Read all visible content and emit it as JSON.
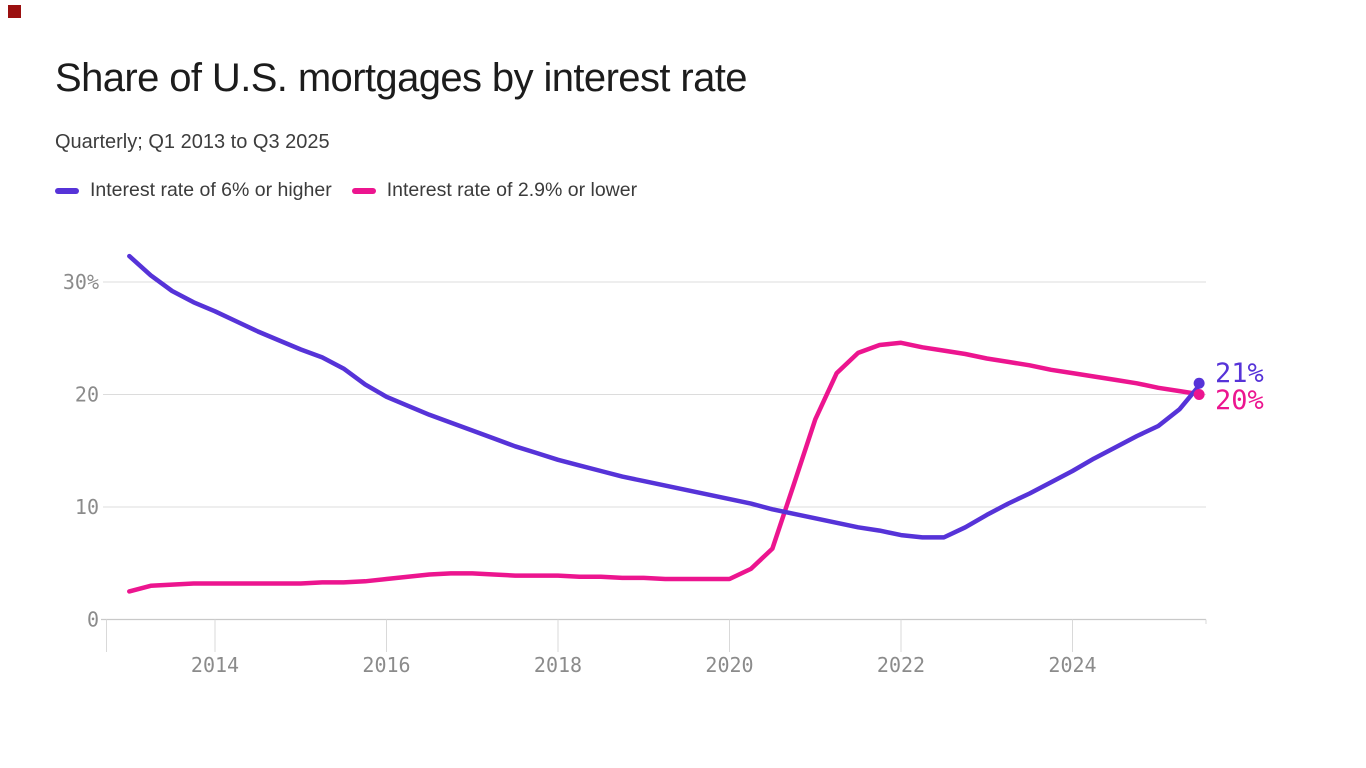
{
  "logo": {
    "color": "#9b1010"
  },
  "header": {
    "title": "Share of U.S. mortgages by interest rate",
    "subtitle": "Quarterly; Q1 2013 to Q3 2025"
  },
  "legend": [
    {
      "label": "Interest rate of 6% or higher",
      "color": "#5633d8"
    },
    {
      "label": "Interest rate of 2.9% or lower",
      "color": "#ec158f"
    }
  ],
  "chart_data": {
    "type": "line",
    "title": "Share of U.S. mortgages by interest rate",
    "subtitle": "Quarterly; Q1 2013 to Q3 2025",
    "grid": "horizontal",
    "legend_position": "top-left",
    "ylim": [
      0,
      33.5
    ],
    "y_ticks": [
      {
        "label": "30%",
        "value": 30
      },
      {
        "label": "20",
        "value": 20
      },
      {
        "label": "10",
        "value": 10
      },
      {
        "label": "0",
        "value": 0
      }
    ],
    "x_ticks": [
      {
        "label": "2014",
        "year": 2014
      },
      {
        "label": "2016",
        "year": 2016
      },
      {
        "label": "2018",
        "year": 2018
      },
      {
        "label": "2020",
        "year": 2020
      },
      {
        "label": "2022",
        "year": 2022
      },
      {
        "label": "2024",
        "year": 2024
      }
    ],
    "axis_text_color": "#8b8b8b",
    "categories": [
      "2013 Q1",
      "2013 Q2",
      "2013 Q3",
      "2013 Q4",
      "2014 Q1",
      "2014 Q2",
      "2014 Q3",
      "2014 Q4",
      "2015 Q1",
      "2015 Q2",
      "2015 Q3",
      "2015 Q4",
      "2016 Q1",
      "2016 Q2",
      "2016 Q3",
      "2016 Q4",
      "2017 Q1",
      "2017 Q2",
      "2017 Q3",
      "2017 Q4",
      "2018 Q1",
      "2018 Q2",
      "2018 Q3",
      "2018 Q4",
      "2019 Q1",
      "2019 Q2",
      "2019 Q3",
      "2019 Q4",
      "2020 Q1",
      "2020 Q2",
      "2020 Q3",
      "2020 Q4",
      "2021 Q1",
      "2021 Q2",
      "2021 Q3",
      "2021 Q4",
      "2022 Q1",
      "2022 Q2",
      "2022 Q3",
      "2022 Q4",
      "2023 Q1",
      "2023 Q2",
      "2023 Q3",
      "2023 Q4",
      "2024 Q1",
      "2024 Q2",
      "2024 Q3",
      "2024 Q4",
      "2025 Q1",
      "2025 Q2",
      "2025 Q3"
    ],
    "series": [
      {
        "name": "Interest rate of 6% or higher",
        "color": "#5633d8",
        "end_label": "21%",
        "end_value": 21,
        "values": [
          32.3,
          30.6,
          29.2,
          28.2,
          27.4,
          26.5,
          25.6,
          24.8,
          24.0,
          23.3,
          22.3,
          20.9,
          19.8,
          19.0,
          18.2,
          17.5,
          16.8,
          16.1,
          15.4,
          14.8,
          14.2,
          13.7,
          13.2,
          12.7,
          12.3,
          11.9,
          11.5,
          11.1,
          10.7,
          10.3,
          9.8,
          9.4,
          9.0,
          8.6,
          8.2,
          7.9,
          7.5,
          7.3,
          7.3,
          8.2,
          9.3,
          10.3,
          11.2,
          12.2,
          13.2,
          14.3,
          15.3,
          16.3,
          17.2,
          18.7,
          21.0
        ]
      },
      {
        "name": "Interest rate of 2.9% or lower",
        "color": "#ec158f",
        "end_label": "20%",
        "end_value": 20,
        "values": [
          2.5,
          3.0,
          3.1,
          3.2,
          3.2,
          3.2,
          3.2,
          3.2,
          3.2,
          3.3,
          3.3,
          3.4,
          3.6,
          3.8,
          4.0,
          4.1,
          4.1,
          4.0,
          3.9,
          3.9,
          3.9,
          3.8,
          3.8,
          3.7,
          3.7,
          3.6,
          3.6,
          3.6,
          3.6,
          4.5,
          6.3,
          12.0,
          17.8,
          21.9,
          23.7,
          24.4,
          24.6,
          24.2,
          23.9,
          23.6,
          23.2,
          22.9,
          22.6,
          22.2,
          21.9,
          21.6,
          21.3,
          21.0,
          20.6,
          20.3,
          20.0
        ]
      }
    ]
  }
}
